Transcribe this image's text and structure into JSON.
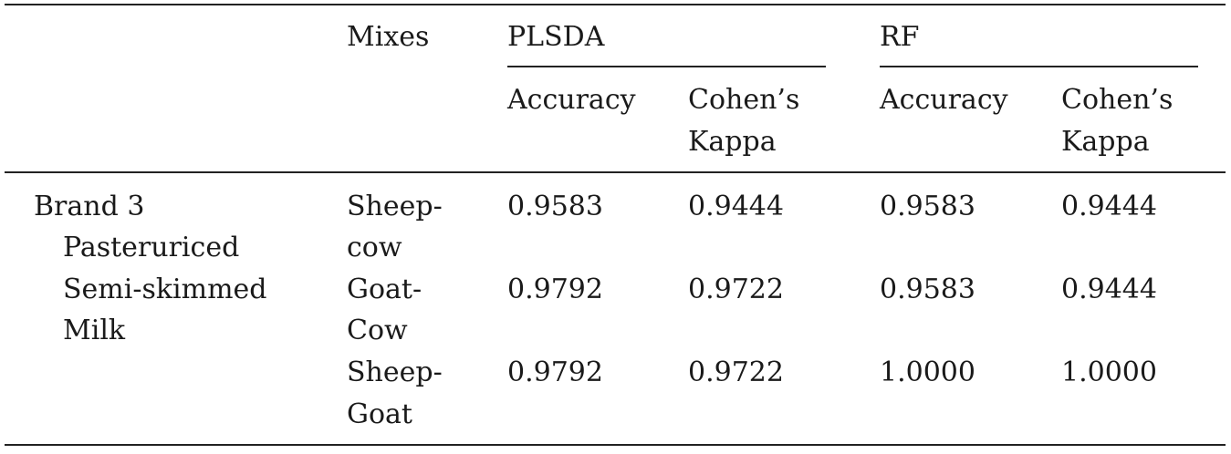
{
  "table": {
    "headers": {
      "mixes": "Mixes",
      "plsda": "PLSDA",
      "rf": "RF",
      "accuracy": "Accuracy",
      "cohens": "Cohen’s",
      "kappa": "Kappa"
    },
    "sample": {
      "line1": "Brand 3",
      "line2": "Pasteruriced",
      "line3": "Semi-skimmed",
      "line4": "Milk"
    },
    "rows": [
      {
        "mix_line1": "Sheep-",
        "mix_line2": "cow",
        "plsda_accuracy": "0.9583",
        "plsda_kappa": "0.9444",
        "rf_accuracy": "0.9583",
        "rf_kappa": "0.9444"
      },
      {
        "mix_line1": "Goat-",
        "mix_line2": "Cow",
        "plsda_accuracy": "0.9792",
        "plsda_kappa": "0.9722",
        "rf_accuracy": "0.9583",
        "rf_kappa": "0.9444"
      },
      {
        "mix_line1": "Sheep-",
        "mix_line2": "Goat",
        "plsda_accuracy": "0.9792",
        "plsda_kappa": "0.9722",
        "rf_accuracy": "1.0000",
        "rf_kappa": "1.0000"
      }
    ]
  }
}
